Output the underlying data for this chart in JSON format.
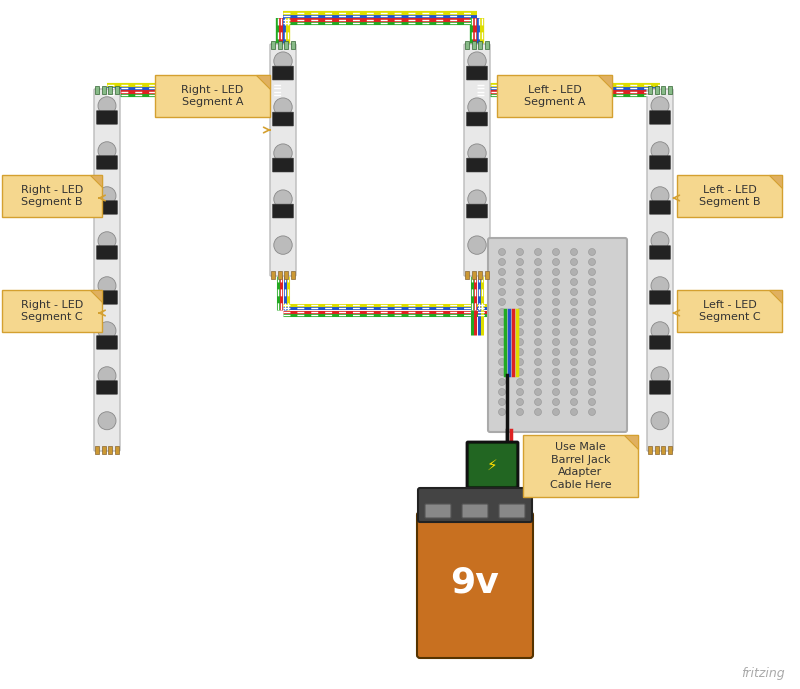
{
  "bg_color": "#ffffff",
  "wire_colors": {
    "red": "#dd2222",
    "blue": "#2255cc",
    "green": "#22aa22",
    "yellow": "#dddd00",
    "white": "#ffffff",
    "black": "#111111"
  },
  "label_bg": "#f5d78e",
  "label_border": "#d4a030",
  "label_fold": "#e0b060",
  "led_strip_color": "#e8e8e8",
  "led_strip_border": "#bbbbbb",
  "breadboard_color": "#cccccc",
  "breadboard_border": "#aaaaaa",
  "fritzing_text": "fritzing",
  "fritzing_color": "#aaaaaa",
  "battery_body": "#c87020",
  "battery_top_color": "#444444",
  "battery_text": "9v",
  "connector_color": "#226622",
  "connector_border": "#114411",
  "figsize": [
    8.0,
    6.89
  ],
  "dpi": 100,
  "xlim": [
    0,
    800
  ],
  "ylim": [
    0,
    689
  ]
}
